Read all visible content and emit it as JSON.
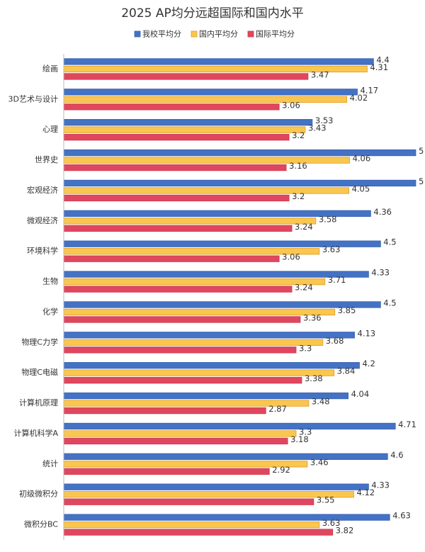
{
  "chart_data": {
    "type": "bar",
    "orientation": "horizontal",
    "title": "2025 AP均分远超国际和国内水平",
    "categories": [
      "绘画",
      "3D艺术与设计",
      "心理",
      "世界史",
      "宏观经济",
      "微观经济",
      "环境科学",
      "生物",
      "化学",
      "物理C力学",
      "物理C电磁",
      "计算机原理",
      "计算机科学A",
      "统计",
      "初级微积分",
      "微积分BC"
    ],
    "series": [
      {
        "name": "我校平均分",
        "color": "#4472c4",
        "values": [
          4.4,
          4.17,
          3.53,
          5,
          5,
          4.36,
          4.5,
          4.33,
          4.5,
          4.13,
          4.2,
          4.04,
          4.71,
          4.6,
          4.33,
          4.63
        ]
      },
      {
        "name": "国内平均分",
        "color": "#f9c74f",
        "values": [
          4.31,
          4.02,
          3.43,
          4.06,
          4.05,
          3.58,
          3.63,
          3.71,
          3.85,
          3.68,
          3.84,
          3.48,
          3.3,
          3.46,
          4.12,
          3.63
        ]
      },
      {
        "name": "国际平均分",
        "color": "#e0475f",
        "values": [
          3.47,
          3.06,
          3.2,
          3.16,
          3.2,
          3.24,
          3.06,
          3.24,
          3.36,
          3.3,
          3.38,
          2.87,
          3.18,
          2.92,
          3.55,
          3.82
        ]
      }
    ],
    "xlim": [
      0,
      5
    ],
    "legend": "top"
  }
}
